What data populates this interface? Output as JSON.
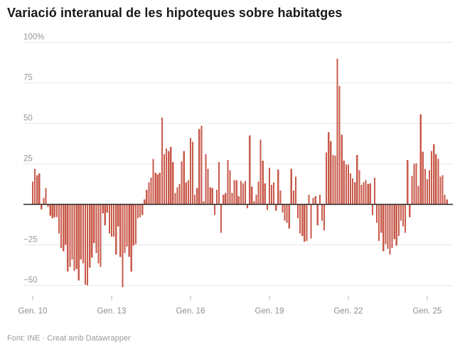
{
  "title": "Variació interanual de les hipoteques sobre habitatges",
  "footer": {
    "source_label": "Font: INE",
    "separator": "·",
    "credit_label": "Creat amb Datawrapper"
  },
  "colors": {
    "bar": "#c85a4b",
    "zero_line": "#262626",
    "grid_line": "#e8e8e8",
    "axis_text": "#8e8e8e",
    "title_text": "#191919",
    "footer_text": "#9a9a9a"
  },
  "chart_data": {
    "type": "bar",
    "title": "Variació interanual de les hipoteques sobre habitatges",
    "unit": "%",
    "frequency": "monthly",
    "start_month": "2010-01",
    "end_month": "2025-10",
    "grid": "horizontal-only",
    "legend": "none",
    "y_axis": {
      "tick_values": [
        100,
        75,
        50,
        25,
        -25,
        -50
      ],
      "tick_labels": [
        "100%",
        "75",
        "50",
        "25",
        "−25",
        "−50"
      ],
      "range": [
        -55,
        100
      ]
    },
    "x_axis": {
      "ticks": [
        {
          "label": "Gen. 10",
          "year": 2010
        },
        {
          "label": "Gen. 13",
          "year": 2013
        },
        {
          "label": "Gen. 16",
          "year": 2016
        },
        {
          "label": "Gen. 19",
          "year": 2019
        },
        {
          "label": "Gen. 22",
          "year": 2022
        },
        {
          "label": "Gen. 25",
          "year": 2025
        }
      ]
    },
    "series": [
      {
        "name": "Variació interanual (%)",
        "values_by_year": {
          "2010": [
            14,
            22,
            18,
            19,
            -3,
            4,
            10,
            -1.5,
            -7,
            -8.5,
            -8,
            -8
          ],
          "2011": [
            -18,
            -27,
            -29,
            -25,
            -41.5,
            -38.5,
            -34,
            -41,
            -40,
            -47,
            -34,
            -36.5
          ],
          "2012": [
            -49.5,
            -50,
            -39,
            -33,
            -24,
            -30,
            -36.5,
            -38.5,
            -5.5,
            -13,
            -5,
            -18
          ],
          "2013": [
            -20,
            -20,
            -31,
            -13.5,
            -32.5,
            -51,
            -30,
            -26,
            -32.5,
            -41.5,
            -25.5,
            -24.5
          ],
          "2014": [
            -8.5,
            -8,
            -6.5,
            3,
            9,
            13.5,
            16.5,
            28,
            19.5,
            18.5,
            19.5,
            53.5
          ],
          "2015": [
            31,
            34.5,
            33,
            35.5,
            26,
            7,
            10.5,
            12.5,
            26.5,
            33,
            13.5,
            15
          ],
          "2016": [
            41,
            38.5,
            6,
            10,
            46.5,
            48.5,
            2,
            31,
            22,
            10.5,
            10,
            -6.5
          ],
          "2017": [
            9,
            26,
            -17.5,
            6,
            7,
            27.5,
            21,
            7,
            15,
            15,
            5,
            14.5
          ],
          "2018": [
            13,
            14.5,
            -2.5,
            42.5,
            11,
            2,
            6,
            14,
            40,
            27,
            13,
            -3.5
          ],
          "2019": [
            22.5,
            12,
            13.5,
            -4,
            21.5,
            8.5,
            -5,
            -10,
            -11.5,
            -15,
            22,
            8.5
          ],
          "2020": [
            17,
            -8.5,
            -18,
            -19.5,
            -23,
            -22.5,
            6,
            -21,
            4,
            5,
            -13,
            6
          ],
          "2021": [
            -10,
            -16,
            32,
            44.5,
            39,
            30.5,
            30,
            90,
            73,
            43,
            27,
            24.5
          ],
          "2022": [
            24.5,
            19,
            16,
            13.5,
            30.5,
            21,
            12,
            13.5,
            15,
            12.5,
            13,
            -6.5
          ],
          "2023": [
            16.5,
            -11.5,
            -22.5,
            -17.5,
            -29,
            -24.5,
            -27.5,
            -31,
            -27,
            -21.5,
            -25.5,
            -19.5
          ],
          "2024": [
            -10,
            -13.5,
            -17.5,
            27.5,
            -8,
            17.5,
            25,
            25.5,
            11.5,
            55.5,
            32.5,
            22
          ],
          "2025": [
            15.5,
            21,
            33,
            37,
            31,
            28,
            17,
            18,
            6,
            3
          ]
        }
      }
    ]
  }
}
